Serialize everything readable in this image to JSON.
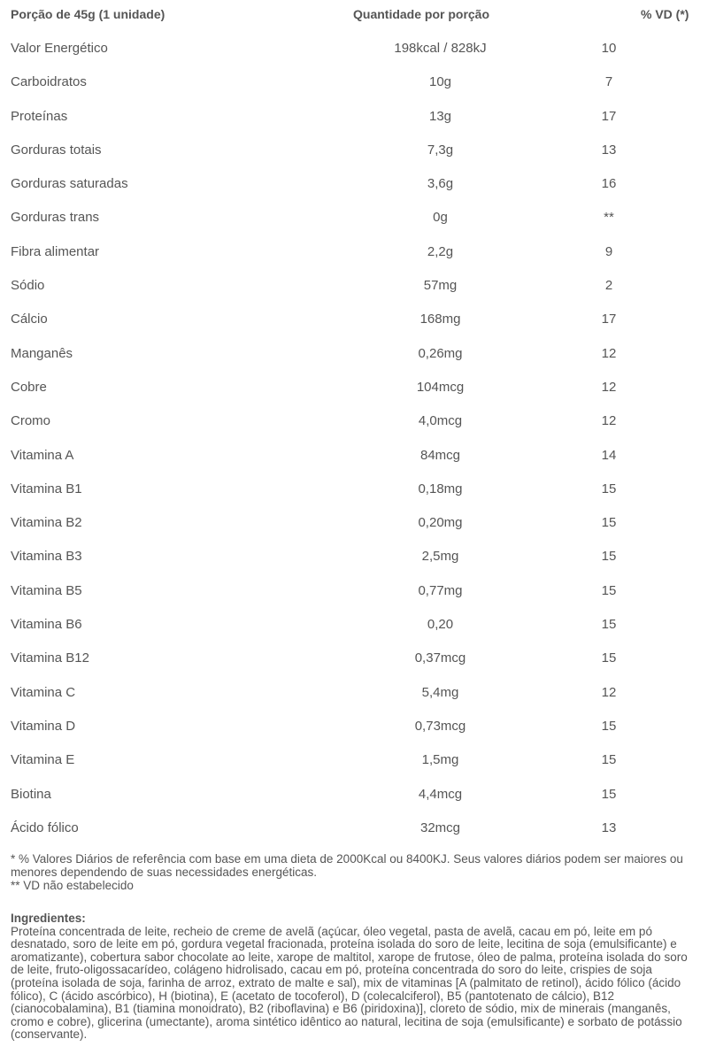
{
  "header": {
    "portion": "Porção de 45g (1 unidade)",
    "quantity": "Quantidade por porção",
    "vd": "% VD (*)"
  },
  "rows": [
    {
      "name": "Valor Energético",
      "qty": "198kcal / 828kJ",
      "vd": "10"
    },
    {
      "name": "Carboidratos",
      "qty": "10g",
      "vd": "7"
    },
    {
      "name": "Proteínas",
      "qty": "13g",
      "vd": "17"
    },
    {
      "name": "Gorduras totais",
      "qty": "7,3g",
      "vd": "13"
    },
    {
      "name": "Gorduras saturadas",
      "qty": "3,6g",
      "vd": "16"
    },
    {
      "name": "Gorduras trans",
      "qty": "0g",
      "vd": "**"
    },
    {
      "name": "Fibra alimentar",
      "qty": "2,2g",
      "vd": "9"
    },
    {
      "name": "Sódio",
      "qty": "57mg",
      "vd": "2"
    },
    {
      "name": "Cálcio",
      "qty": "168mg",
      "vd": "17"
    },
    {
      "name": "Manganês",
      "qty": "0,26mg",
      "vd": "12"
    },
    {
      "name": "Cobre",
      "qty": "104mcg",
      "vd": "12"
    },
    {
      "name": "Cromo",
      "qty": "4,0mcg",
      "vd": "12"
    },
    {
      "name": "Vitamina A",
      "qty": "84mcg",
      "vd": "14"
    },
    {
      "name": "Vitamina B1",
      "qty": "0,18mg",
      "vd": "15"
    },
    {
      "name": "Vitamina B2",
      "qty": "0,20mg",
      "vd": "15"
    },
    {
      "name": "Vitamina B3",
      "qty": "2,5mg",
      "vd": "15"
    },
    {
      "name": "Vitamina B5",
      "qty": "0,77mg",
      "vd": "15"
    },
    {
      "name": "Vitamina B6",
      "qty": "0,20",
      "vd": "15"
    },
    {
      "name": "Vitamina B12",
      "qty": "0,37mcg",
      "vd": "15"
    },
    {
      "name": "Vitamina C",
      "qty": "5,4mg",
      "vd": "12"
    },
    {
      "name": "Vitamina D",
      "qty": "0,73mcg",
      "vd": "15"
    },
    {
      "name": "Vitamina E",
      "qty": "1,5mg",
      "vd": "15"
    },
    {
      "name": "Biotina",
      "qty": "4,4mcg",
      "vd": "15"
    },
    {
      "name": "Ácido fólico",
      "qty": "32mcg",
      "vd": "13"
    }
  ],
  "footnotes": {
    "vd_note": "* % Valores Diários de referência com base em uma dieta de 2000Kcal ou 8400KJ. Seus valores diários podem ser maiores ou menores dependendo de suas necessidades energéticas.",
    "not_established": "** VD não estabelecido"
  },
  "ingredients": {
    "title": "Ingredientes:",
    "text": "Proteína concentrada de leite, recheio de creme de avelã (açúcar, óleo vegetal, pasta de avelã, cacau em pó, leite em pó desnatado, soro de leite em pó, gordura vegetal fracionada, proteína isolada do soro de leite, lecitina de soja (emulsificante) e aromatizante), cobertura sabor chocolate ao leite, xarope de maltitol, xarope de frutose, óleo de palma, proteína isolada do soro de leite, fruto-oligossacarídeo, colágeno hidrolisado, cacau em pó, proteína concentrada do soro do leite, crispies de soja (proteína isolada de soja, farinha de arroz, extrato de malte e sal), mix de vitaminas [A (palmitato de retinol), ácido fólico (ácido fólico), C (ácido ascórbico), H (biotina), E (acetato de tocoferol), D (colecalciferol), B5 (pantotenato de cálcio), B12 (cianocobalamina), B1 (tiamina monoidrato), B2 (riboflavina) e B6 (piridoxina)], cloreto de sódio, mix de minerais (manganês, cromo e cobre), glicerina (umectante), aroma sintético idêntico ao natural, lecitina de soja (emulsificante) e sorbato de potássio (conservante)."
  }
}
